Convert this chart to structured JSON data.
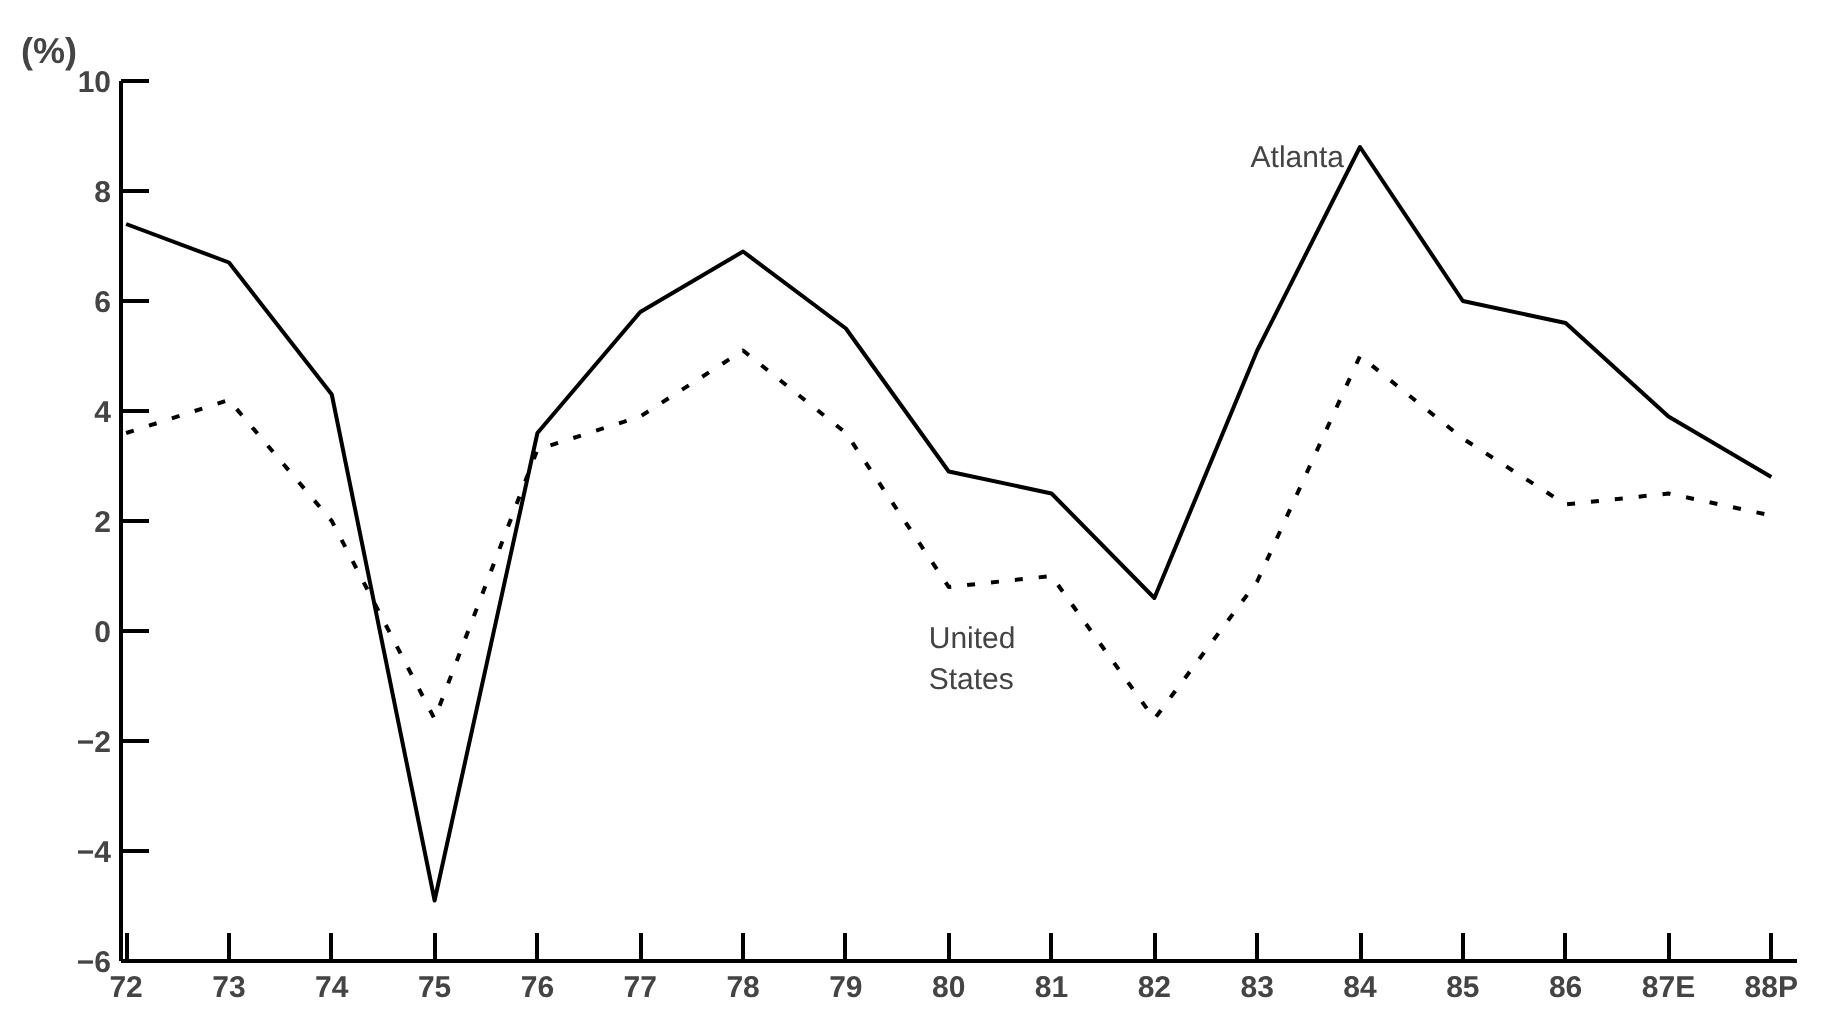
{
  "chart_data": {
    "type": "line",
    "ylabel": "(%)",
    "categories": [
      "72",
      "73",
      "74",
      "75",
      "76",
      "77",
      "78",
      "79",
      "80",
      "81",
      "82",
      "83",
      "84",
      "85",
      "86",
      "87E",
      "88P"
    ],
    "series": [
      {
        "name": "Atlanta",
        "color": "#000000",
        "line_style": "solid",
        "values": [
          7.4,
          6.7,
          4.3,
          -4.9,
          3.6,
          5.8,
          6.9,
          5.5,
          2.9,
          2.5,
          0.6,
          5.1,
          8.8,
          6.0,
          5.6,
          3.9,
          2.8
        ]
      },
      {
        "name": "United States",
        "color": "#000000",
        "line_style": "dotted",
        "values": [
          3.6,
          4.2,
          2.0,
          -1.6,
          3.3,
          3.9,
          5.1,
          3.6,
          0.8,
          1.0,
          -1.6,
          0.9,
          5.0,
          3.5,
          2.3,
          2.5,
          2.1
        ]
      }
    ],
    "ylim": [
      -6,
      10
    ],
    "yticks": [
      -6,
      -4,
      -2,
      0,
      2,
      4,
      6,
      8,
      10
    ],
    "grid": false
  }
}
